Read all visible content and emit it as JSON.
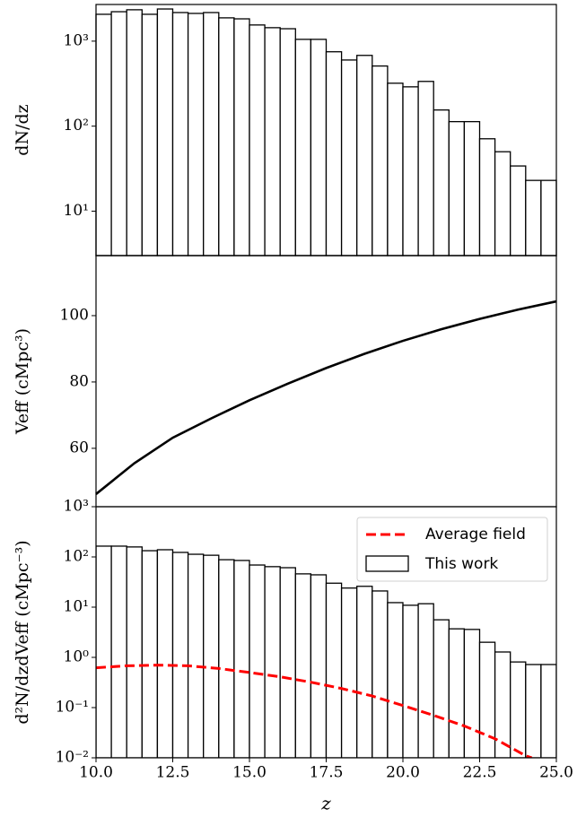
{
  "chart_data": [
    {
      "type": "histogram",
      "ylabel": "dN/dz",
      "log_y": true,
      "bins": [
        10,
        10.5,
        11,
        11.5,
        12,
        12.5,
        13,
        13.5,
        14,
        14.5,
        15,
        15.5,
        16,
        16.5,
        17,
        17.5,
        18,
        18.5,
        19,
        19.5,
        20,
        20.5,
        21,
        21.5,
        22,
        22.5,
        23,
        23.5,
        24,
        24.5,
        25
      ],
      "values": [
        2070,
        2220,
        2340,
        2070,
        2390,
        2170,
        2120,
        2170,
        1880,
        1830,
        1550,
        1440,
        1400,
        1050,
        1050,
        750,
        600,
        680,
        510,
        320,
        290,
        336,
        155,
        113,
        113,
        71,
        50,
        34,
        23,
        23
      ],
      "color": "#ffffff",
      "edgecolor": "#000000",
      "xlim": [
        10,
        25
      ],
      "ylim": [
        3,
        2700
      ],
      "yticks": [
        {
          "value": 10,
          "label": "10¹"
        },
        {
          "value": 100,
          "label": "10²"
        },
        {
          "value": 1000,
          "label": "10³"
        }
      ]
    },
    {
      "type": "line",
      "ylabel": "Veff (cMpc³)",
      "x": [
        10,
        11.25,
        12.5,
        13.75,
        15,
        16.25,
        17.5,
        18.75,
        20,
        21.25,
        22.5,
        23.75,
        25
      ],
      "series": [
        {
          "color": "#000000",
          "values": [
            46.2,
            55.5,
            63.2,
            69,
            74.5,
            79.5,
            84.2,
            88.5,
            92.4,
            95.9,
            99,
            101.8,
            104.3
          ]
        }
      ],
      "xlim": [
        10,
        25
      ],
      "ylim": [
        42.4,
        118.1
      ],
      "yticks": [
        60,
        80,
        100
      ]
    },
    {
      "type": "histogram",
      "ylabel": "d²N/dzdVeff (cMpc⁻³)",
      "xlabel": "z",
      "log_y": true,
      "name": "This work",
      "bins": [
        10,
        10.5,
        11,
        11.5,
        12,
        12.5,
        13,
        13.5,
        14,
        14.5,
        15,
        15.5,
        16,
        16.5,
        17,
        17.5,
        18,
        18.5,
        19,
        19.5,
        20,
        20.5,
        21,
        21.5,
        22,
        22.5,
        23,
        23.5,
        24,
        24.5,
        25
      ],
      "values": [
        164,
        164,
        158,
        133,
        139,
        123,
        113,
        108,
        88,
        85,
        69,
        64,
        61,
        46,
        44,
        30,
        24,
        26,
        21,
        12.3,
        10.9,
        11.7,
        5.6,
        3.7,
        3.6,
        2.0,
        1.28,
        0.81,
        0.72,
        0.72
      ],
      "color": "#ffffff",
      "edgecolor": "#000000",
      "line": {
        "name": "Average field",
        "color": "#ff0000",
        "dashed": true,
        "x": [
          10,
          11,
          12,
          13,
          14,
          15,
          16,
          17,
          18,
          19,
          20,
          21,
          22,
          23,
          24,
          24.2
        ],
        "values": [
          0.62,
          0.68,
          0.7,
          0.68,
          0.6,
          0.5,
          0.41,
          0.32,
          0.24,
          0.17,
          0.11,
          0.07,
          0.043,
          0.024,
          0.011,
          0.01
        ]
      },
      "legend": "upper right",
      "xlim": [
        10,
        25
      ],
      "ylim": [
        0.01,
        1000
      ],
      "xticks": [
        {
          "value": 10,
          "label": "10.0"
        },
        {
          "value": 12.5,
          "label": "12.5"
        },
        {
          "value": 15,
          "label": "15.0"
        },
        {
          "value": 17.5,
          "label": "17.5"
        },
        {
          "value": 20,
          "label": "20.0"
        },
        {
          "value": 22.5,
          "label": "22.5"
        },
        {
          "value": 25,
          "label": "25.0"
        }
      ],
      "yticks": [
        {
          "value": 0.01,
          "label": "10⁻²"
        },
        {
          "value": 0.1,
          "label": "10⁻¹"
        },
        {
          "value": 1,
          "label": "10⁰"
        },
        {
          "value": 10,
          "label": "10¹"
        },
        {
          "value": 100,
          "label": "10²"
        },
        {
          "value": 1000,
          "label": "10³"
        }
      ]
    }
  ]
}
